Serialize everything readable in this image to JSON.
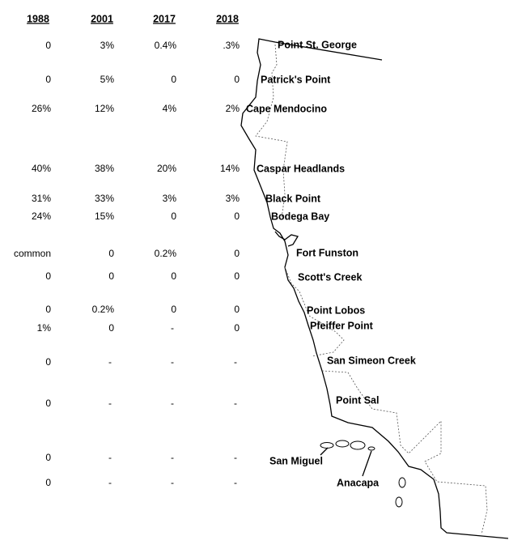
{
  "table": {
    "headers": [
      "1988",
      "2001",
      "2017",
      "2018"
    ],
    "rows": [
      {
        "site": "Point St. George",
        "values": [
          0,
          "3%",
          "0.4%",
          ".3%"
        ]
      },
      {
        "site": "Patrick's Point",
        "values": [
          0,
          "5%",
          0,
          0
        ]
      },
      {
        "site": "Cape Mendocino",
        "values": [
          "26%",
          "12%",
          "4%",
          "2%"
        ]
      },
      {
        "site": "Caspar Headlands",
        "values": [
          "40%",
          "38%",
          "20%",
          "14%"
        ]
      },
      {
        "site": "Black Point",
        "values": [
          "31%",
          "33%",
          "3%",
          "3%"
        ]
      },
      {
        "site": "Bodega Bay",
        "values": [
          "24%",
          "15%",
          0,
          0
        ]
      },
      {
        "site": "Fort Funston",
        "values": [
          "common",
          0,
          "0.2%",
          0
        ]
      },
      {
        "site": "Scott's Creek",
        "values": [
          0,
          0,
          0,
          0
        ]
      },
      {
        "site": "Point Lobos",
        "values": [
          0,
          "0.2%",
          0,
          0
        ]
      },
      {
        "site": "Pfeiffer Point",
        "values": [
          "1%",
          0,
          "-",
          0
        ]
      },
      {
        "site": "San Simeon Creek",
        "values": [
          0,
          "-",
          "-",
          "-"
        ]
      },
      {
        "site": "Point Sal",
        "values": [
          0,
          "-",
          "-",
          "-"
        ]
      },
      {
        "site": "San Miguel",
        "values": [
          0,
          "-",
          "-",
          "-"
        ]
      },
      {
        "site": "Anacapa",
        "values": [
          0,
          "-",
          "-",
          "-"
        ]
      }
    ]
  }
}
